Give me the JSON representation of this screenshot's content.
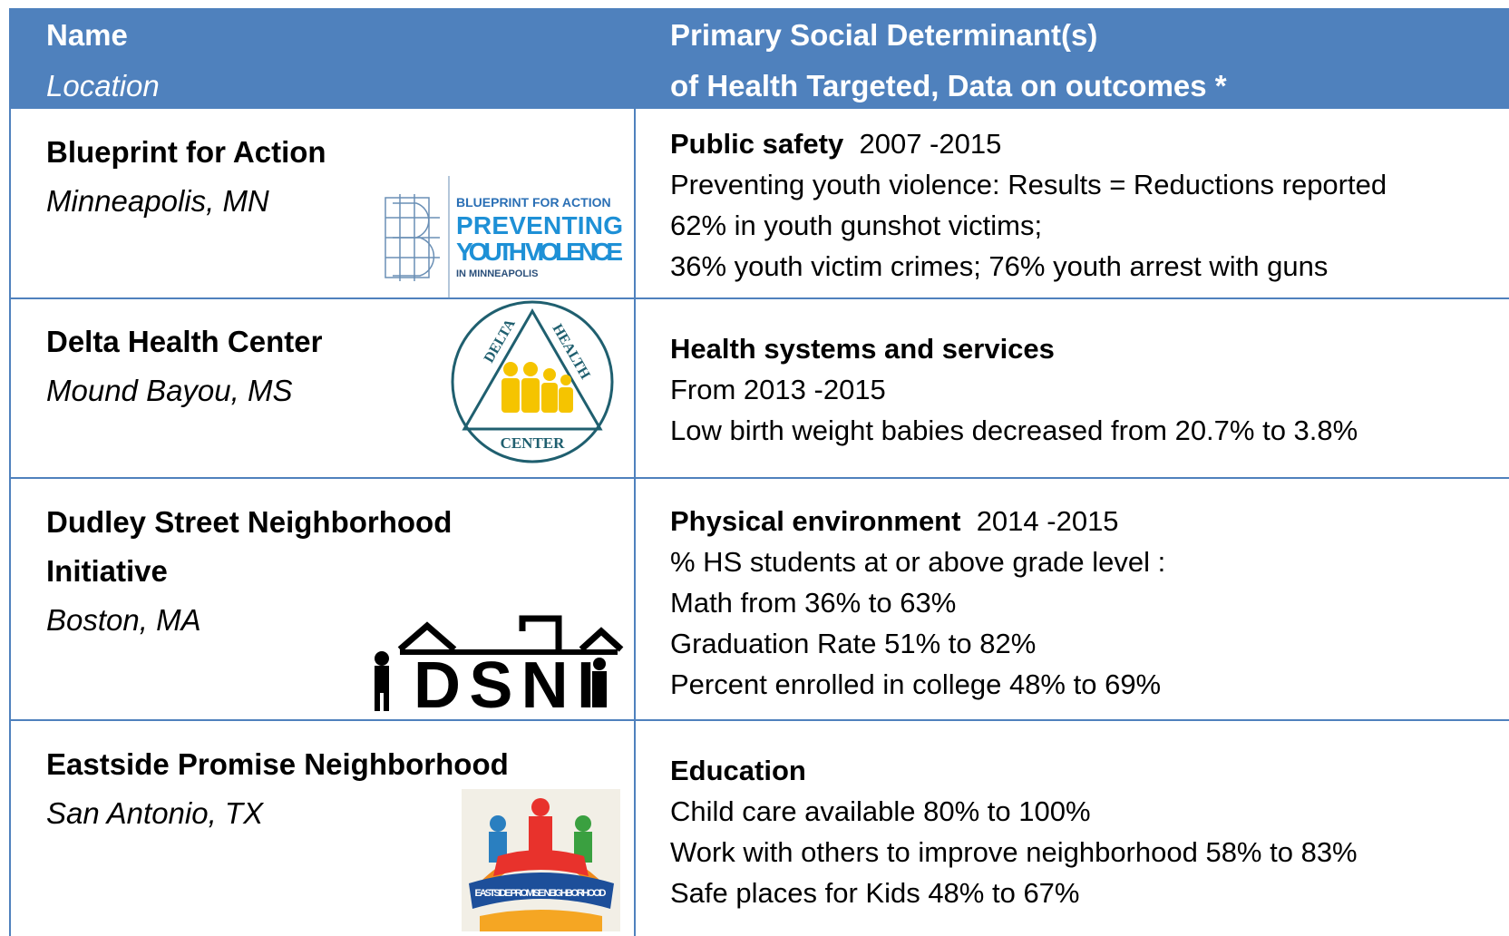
{
  "header": {
    "col1": {
      "title": "Name",
      "subtitle": "Location"
    },
    "col2": {
      "title": "Primary Social Determinant(s)",
      "subtitle": "of Health Targeted, Data on outcomes *"
    }
  },
  "rows": [
    {
      "name": "Blueprint for Action",
      "location": "Minneapolis, MN",
      "logo": [
        "BLUEPRINT FOR ACTION",
        "PREVENTING",
        "YOUTH VIOLENCE",
        "IN MINNEAPOLIS"
      ],
      "heading": "Public safety",
      "period": "2007 -2015",
      "lines": [
        "Preventing youth violence: Results = Reductions reported",
        "62% in youth gunshot victims;",
        "36% youth victim crimes; 76% youth arrest with guns"
      ]
    },
    {
      "name": "Delta Health Center",
      "location": "Mound Bayou, MS",
      "logo": [
        "DELTA",
        "HEALTH",
        "CENTER"
      ],
      "heading": "Health systems and services",
      "lines": [
        "From 2013 -2015",
        "Low birth weight babies decreased from 20.7% to 3.8%"
      ]
    },
    {
      "name": "Dudley Street Neighborhood Initiative",
      "location": "Boston, MA",
      "logo": [
        "DSNI"
      ],
      "heading": "Physical environment",
      "period": "2014 -2015",
      "lines": [
        "% HS students at or above grade level :",
        "Math from  36%  to  63%",
        "Graduation Rate  51%  to  82%",
        "Percent  enrolled  in college  48% to  69%"
      ]
    },
    {
      "name": "Eastside Promise Neighborhood",
      "location": "San Antonio, TX",
      "logo": [
        "EASTSIDE PROMISE NEIGHBORHOOD"
      ],
      "heading": "Education",
      "lines": [
        "Child care available 80% to 100%",
        "Work with others to improve neighborhood 58% to 83%",
        "Safe places for Kids 48% to 67%"
      ]
    }
  ]
}
